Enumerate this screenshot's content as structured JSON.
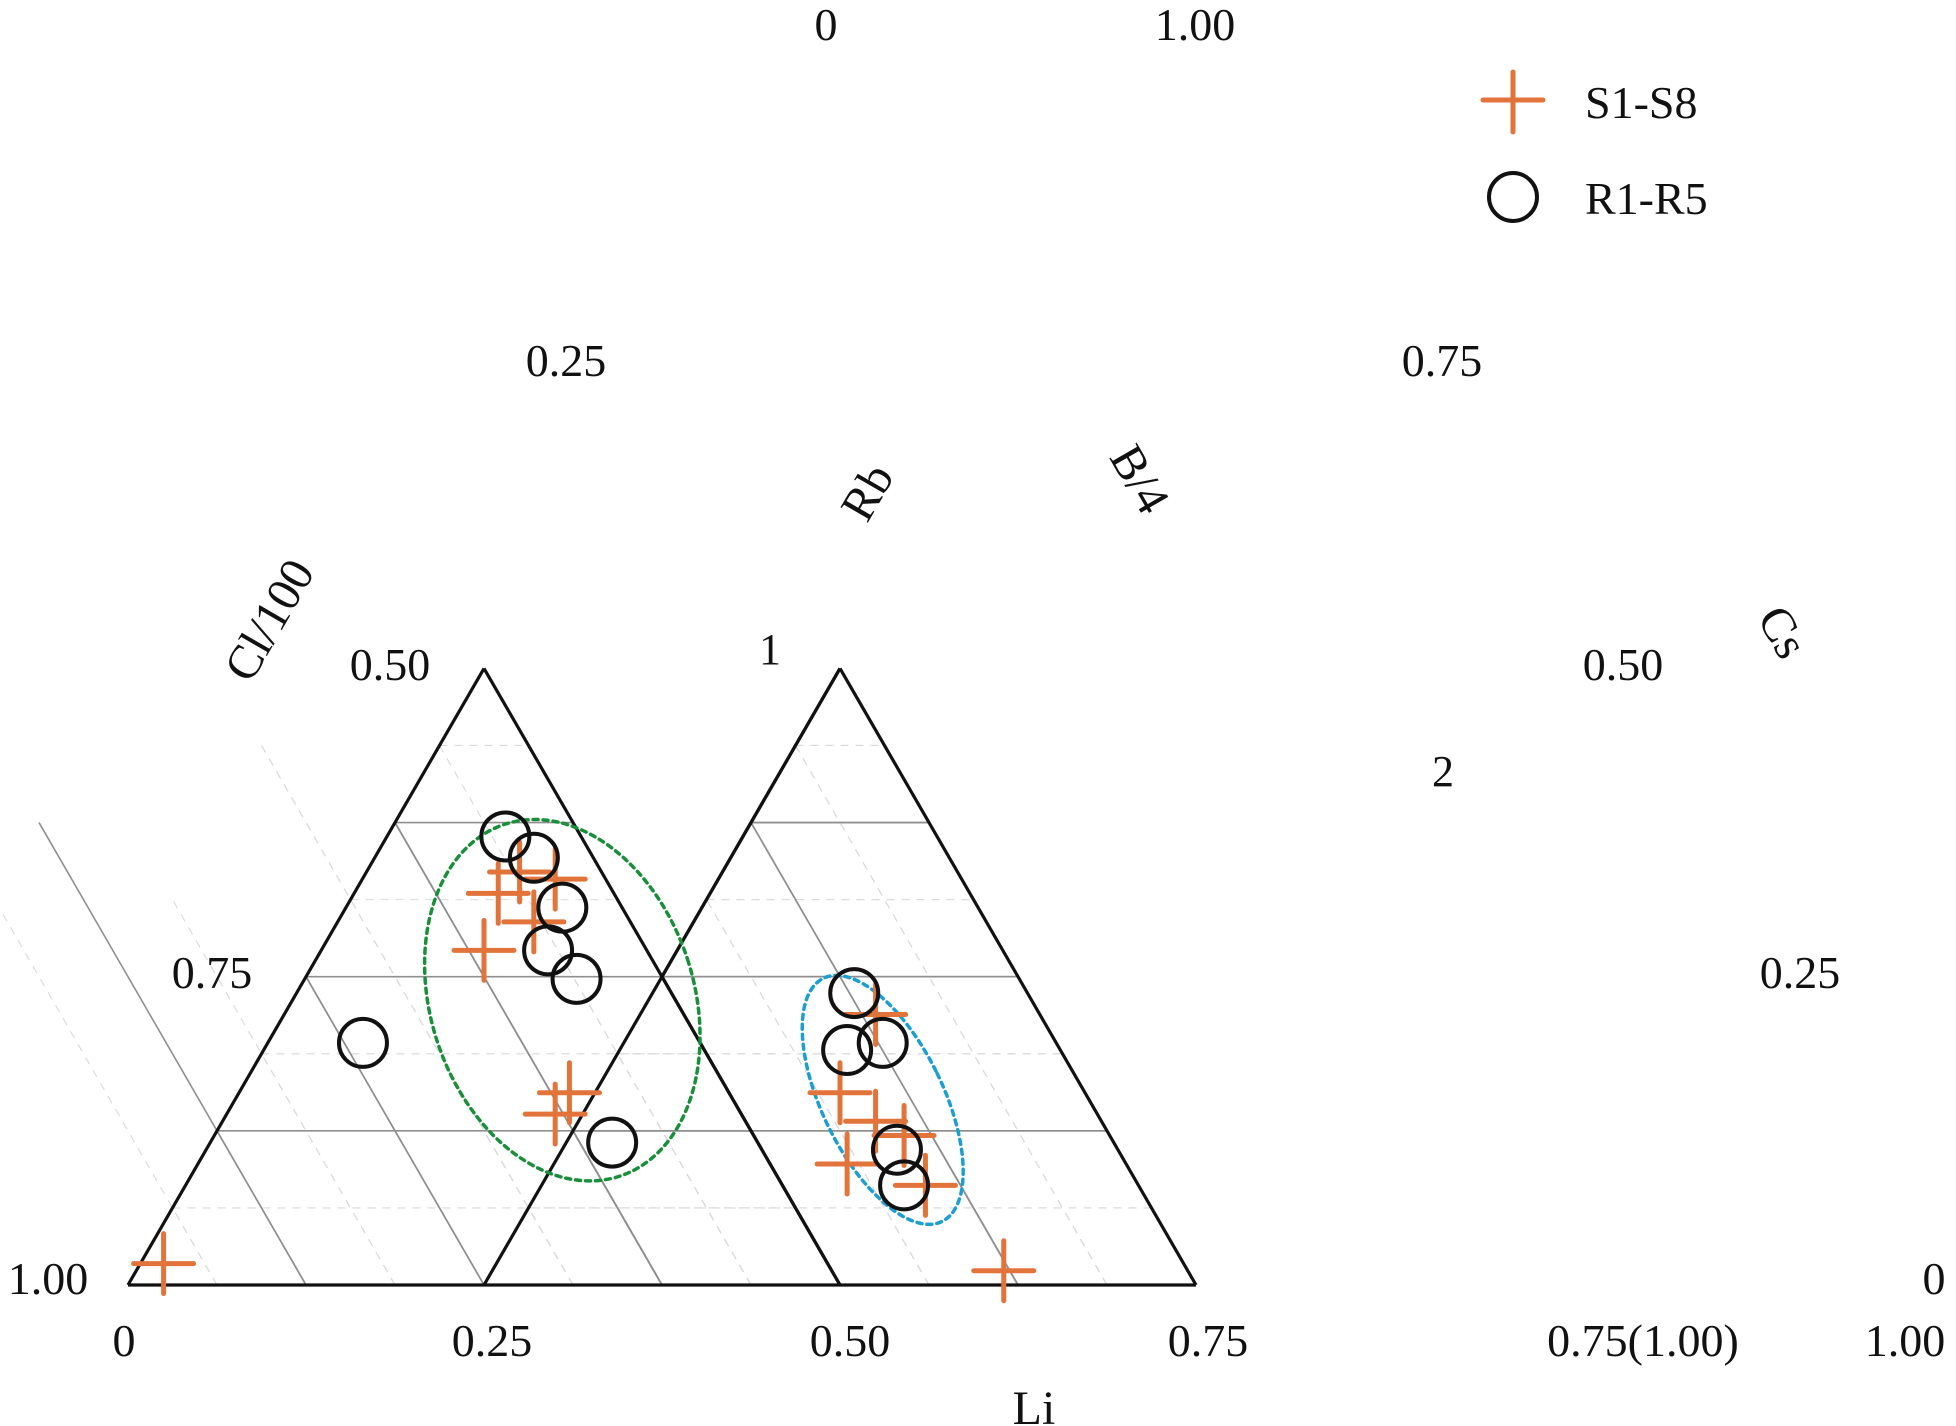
{
  "chart_data": {
    "type": "scatter",
    "subtype": "ternary",
    "title": "",
    "axes": {
      "left_axis_label": "Cl/100",
      "bottom_axis_label": "Li",
      "inner_left_axis_label": "Rb",
      "inner_right_axis_label": "B/4",
      "right_axis_label": "Cs"
    },
    "tick_labels": {
      "left_top": "0",
      "left_025": "0.25",
      "left_050": "0.50",
      "left_075": "0.75",
      "left_bottom": "1.00",
      "top_right": "1.00",
      "right_075": "0.75",
      "right_050": "0.50",
      "right_025": "0.25",
      "right_bottom": "0",
      "bottom_0": "0",
      "bottom_025": "0.25",
      "bottom_050": "0.50",
      "bottom_075": "0.75",
      "bottom_075_100": "0.75(1.00)",
      "bottom_100": "1.00"
    },
    "region_labels": {
      "region_1": "1",
      "region_2": "2"
    },
    "legend": {
      "position": "top-right",
      "items": [
        {
          "label": "S1-S8",
          "marker": "plus",
          "color": "#e2733b"
        },
        {
          "label": "R1-R5",
          "marker": "circle",
          "color": "#111111"
        }
      ]
    },
    "series": [
      {
        "name": "S1-S8",
        "marker": "plus",
        "color": "#e2733b",
        "points": [
          {
            "x": 0.05,
            "y": 0.03
          },
          {
            "x": 0.52,
            "y": 0.55
          },
          {
            "x": 0.55,
            "y": 0.58
          },
          {
            "x": 0.6,
            "y": 0.57
          },
          {
            "x": 0.57,
            "y": 0.51
          },
          {
            "x": 0.5,
            "y": 0.47
          },
          {
            "x": 0.6,
            "y": 0.24
          },
          {
            "x": 0.62,
            "y": 0.27
          },
          {
            "x": 1.05,
            "y": 0.38
          },
          {
            "x": 1.0,
            "y": 0.27
          },
          {
            "x": 1.01,
            "y": 0.17
          },
          {
            "x": 1.05,
            "y": 0.23
          },
          {
            "x": 1.09,
            "y": 0.21
          },
          {
            "x": 1.12,
            "y": 0.14
          },
          {
            "x": 1.23,
            "y": 0.02
          }
        ]
      },
      {
        "name": "R1-R5",
        "marker": "circle",
        "color": "#111111",
        "points": [
          {
            "x": 0.53,
            "y": 0.63
          },
          {
            "x": 0.57,
            "y": 0.6
          },
          {
            "x": 0.61,
            "y": 0.53
          },
          {
            "x": 0.59,
            "y": 0.47
          },
          {
            "x": 0.63,
            "y": 0.43
          },
          {
            "x": 0.68,
            "y": 0.2
          },
          {
            "x": 0.33,
            "y": 0.34
          },
          {
            "x": 1.02,
            "y": 0.41
          },
          {
            "x": 1.01,
            "y": 0.33
          },
          {
            "x": 1.06,
            "y": 0.34
          },
          {
            "x": 1.08,
            "y": 0.19
          },
          {
            "x": 1.09,
            "y": 0.14
          }
        ]
      }
    ],
    "regions": [
      {
        "name": "region-1",
        "color": "#1a8f3a",
        "center": {
          "x": 0.61,
          "y": 0.4
        },
        "rx": 0.185,
        "ry": 0.26,
        "rotation": -18
      },
      {
        "name": "region-2",
        "color": "#1b9fd0",
        "center": {
          "x": 1.06,
          "y": 0.26
        },
        "rx": 0.085,
        "ry": 0.19,
        "rotation": -26
      }
    ],
    "grid": true
  }
}
